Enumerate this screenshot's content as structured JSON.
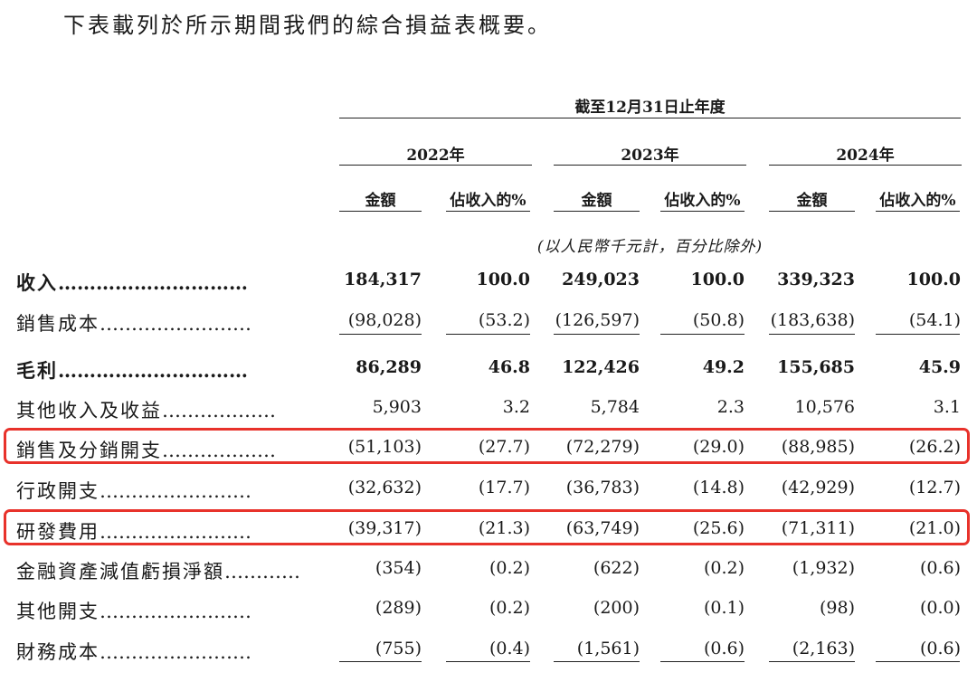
{
  "intro": "下表載列於所示期間我們的綜合損益表概要。",
  "period_header": "截至12月31日止年度",
  "years": [
    "2022年",
    "2023年",
    "2024年"
  ],
  "col_amount": "金額",
  "col_pct": "佔收入的%",
  "unit_note": "(以人民幣千元計，百分比除外)",
  "highlight_color": "#e8322b",
  "rows": [
    {
      "label": "收入",
      "dots": "…………………………",
      "bold": true,
      "values": [
        "184,317",
        "100.0",
        "249,023",
        "100.0",
        "339,323",
        "100.0"
      ]
    },
    {
      "label": "銷售成本",
      "dots": "……………………",
      "bold": false,
      "values": [
        "(98,028)",
        "(53.2)",
        "(126,597)",
        "(50.8)",
        "(183,638)",
        "(54.1)"
      ]
    },
    {
      "label": "毛利",
      "dots": "…………………………",
      "bold": true,
      "values": [
        "86,289",
        "46.8",
        "122,426",
        "49.2",
        "155,685",
        "45.9"
      ]
    },
    {
      "label": "其他收入及收益",
      "dots": "………………",
      "bold": false,
      "values": [
        "5,903",
        "3.2",
        "5,784",
        "2.3",
        "10,576",
        "3.1"
      ]
    },
    {
      "label": "銷售及分銷開支",
      "dots": "………………",
      "bold": false,
      "values": [
        "(51,103)",
        "(27.7)",
        "(72,279)",
        "(29.0)",
        "(88,985)",
        "(26.2)"
      ]
    },
    {
      "label": "行政開支",
      "dots": "……………………",
      "bold": false,
      "values": [
        "(32,632)",
        "(17.7)",
        "(36,783)",
        "(14.8)",
        "(42,929)",
        "(12.7)"
      ]
    },
    {
      "label": "研發費用",
      "dots": "……………………",
      "bold": false,
      "values": [
        "(39,317)",
        "(21.3)",
        "(63,749)",
        "(25.6)",
        "(71,311)",
        "(21.0)"
      ]
    },
    {
      "label": "金融資產減值虧損淨額",
      "dots": "…………",
      "bold": false,
      "values": [
        "(354)",
        "(0.2)",
        "(622)",
        "(0.2)",
        "(1,932)",
        "(0.6)"
      ]
    },
    {
      "label": "其他開支",
      "dots": "……………………",
      "bold": false,
      "values": [
        "(289)",
        "(0.2)",
        "(200)",
        "(0.1)",
        "(98)",
        "(0.0)"
      ]
    },
    {
      "label": "財務成本",
      "dots": "……………………",
      "bold": false,
      "values": [
        "(755)",
        "(0.4)",
        "(1,561)",
        "(0.6)",
        "(2,163)",
        "(0.6)"
      ]
    }
  ]
}
